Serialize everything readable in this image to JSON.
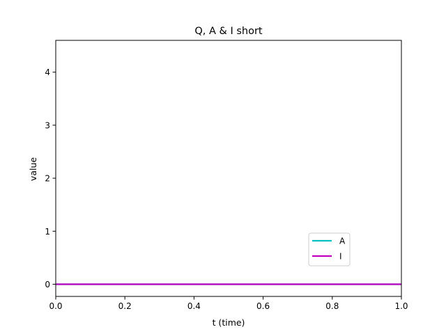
{
  "chart_data": {
    "type": "line",
    "title": "Q, A & I short",
    "xlabel": "t (time)",
    "ylabel": "value",
    "xlim": [
      0.0,
      1.0
    ],
    "ylim": [
      -0.23,
      4.6
    ],
    "xticks": [
      0.0,
      0.2,
      0.4,
      0.6,
      0.8,
      1.0
    ],
    "xtick_labels": [
      "0.0",
      "0.2",
      "0.4",
      "0.6",
      "0.8",
      "1.0"
    ],
    "yticks": [
      0,
      1,
      2,
      3,
      4
    ],
    "ytick_labels": [
      "0",
      "1",
      "2",
      "3",
      "4"
    ],
    "grid": false,
    "legend_position": "lower-right",
    "series": [
      {
        "name": "A",
        "color": "#00bfbf",
        "x": [
          0.0,
          1.0
        ],
        "y": [
          0,
          0
        ]
      },
      {
        "name": "I",
        "color": "#bf00bf",
        "x": [
          0.0,
          1.0
        ],
        "y": [
          0,
          0
        ]
      }
    ]
  }
}
